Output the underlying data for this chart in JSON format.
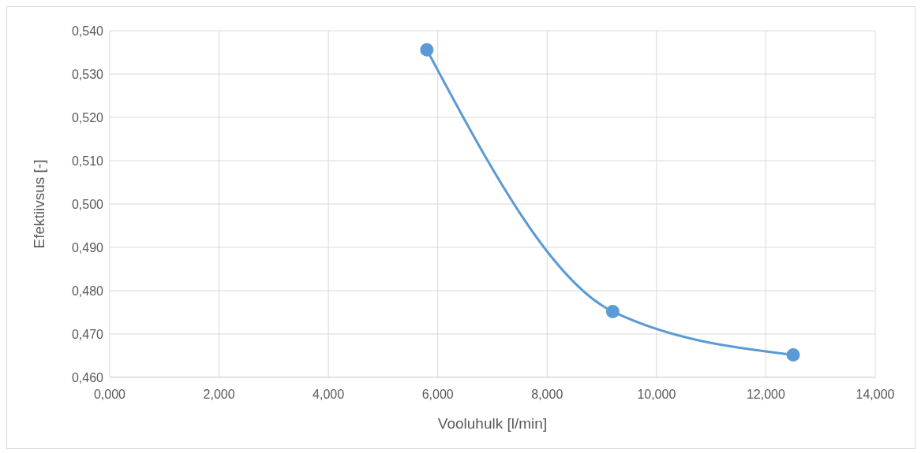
{
  "chart_data": {
    "type": "line",
    "xlabel": "Vooluhulk [l/min]",
    "ylabel": "Efektiivsus [-]",
    "x": [
      5.8,
      9.2,
      12.5
    ],
    "series": [
      {
        "color": "#5b9bd5",
        "values": [
          0.5356,
          0.4752,
          0.4652
        ]
      }
    ],
    "xlim": [
      0,
      14
    ],
    "xticks": [
      {
        "value": 0,
        "label": "0,000"
      },
      {
        "value": 2,
        "label": "2,000"
      },
      {
        "value": 4,
        "label": "4,000"
      },
      {
        "value": 6,
        "label": "6,000"
      },
      {
        "value": 8,
        "label": "8,000"
      },
      {
        "value": 10,
        "label": "10,000"
      },
      {
        "value": 12,
        "label": "12,000"
      },
      {
        "value": 14,
        "label": "14,000"
      }
    ],
    "ylim": [
      0.46,
      0.54
    ],
    "yticks": [
      {
        "value": 0.46,
        "label": "0,460"
      },
      {
        "value": 0.47,
        "label": "0,470"
      },
      {
        "value": 0.48,
        "label": "0,480"
      },
      {
        "value": 0.49,
        "label": "0,490"
      },
      {
        "value": 0.5,
        "label": "0,500"
      },
      {
        "value": 0.51,
        "label": "0,510"
      },
      {
        "value": 0.52,
        "label": "0,520"
      },
      {
        "value": 0.53,
        "label": "0,530"
      },
      {
        "value": 0.54,
        "label": "0,540"
      }
    ],
    "grid": true,
    "marker": "circle",
    "line_style": "solid"
  }
}
